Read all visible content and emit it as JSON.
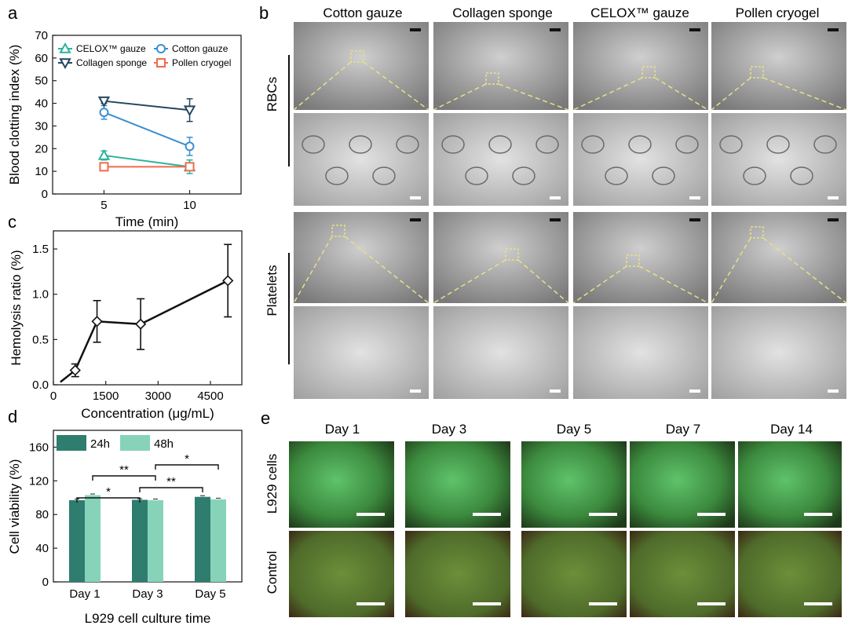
{
  "panels": {
    "a": "a",
    "b": "b",
    "c": "c",
    "d": "d",
    "e": "e"
  },
  "colors": {
    "celox": "#2bb39a",
    "cotton": "#3a8fce",
    "collagen": "#24465e",
    "pollen": "#f06b4f",
    "d_24h": "#2e7d6f",
    "d_48h": "#86d3b9",
    "guide": "#e8df8a"
  },
  "chart_data": [
    {
      "id": "a",
      "type": "line",
      "xlabel": "Time (min)",
      "ylabel": "Blood clotting index (%)",
      "x": [
        5,
        10
      ],
      "xlim": [
        2,
        13
      ],
      "ylim": [
        0,
        70
      ],
      "xticks": [
        "5",
        "10"
      ],
      "yticks": [
        "0",
        "10",
        "20",
        "30",
        "40",
        "50",
        "60",
        "70"
      ],
      "legend": {
        "position": "top",
        "entries": [
          "CELOX™ gauze",
          "Cotton gauze",
          "Collagen sponge",
          "Pollen cryogel"
        ]
      },
      "series": [
        {
          "name": "CELOX™ gauze",
          "marker": "triangle-up",
          "values": [
            17,
            12
          ],
          "err": [
            2,
            3
          ]
        },
        {
          "name": "Cotton gauze",
          "marker": "circle",
          "values": [
            36,
            21
          ],
          "err": [
            3,
            4
          ]
        },
        {
          "name": "Collagen sponge",
          "marker": "triangle-down",
          "values": [
            41,
            37
          ],
          "err": [
            1,
            5
          ]
        },
        {
          "name": "Pollen cryogel",
          "marker": "square",
          "values": [
            12,
            12
          ],
          "err": [
            1,
            1
          ]
        }
      ]
    },
    {
      "id": "c",
      "type": "line",
      "xlabel": "Concentration (μg/mL)",
      "ylabel": "Hemolysis ratio (%)",
      "xlim": [
        0,
        5400
      ],
      "ylim": [
        0,
        1.7
      ],
      "xticks": [
        "0",
        "1500",
        "3000",
        "4500"
      ],
      "yticks": [
        "0.0",
        "0.5",
        "1.0",
        "1.5"
      ],
      "points": [
        {
          "x": 625,
          "y": 0.16,
          "err": 0.07
        },
        {
          "x": 1250,
          "y": 0.7,
          "err": 0.23
        },
        {
          "x": 2500,
          "y": 0.67,
          "err": 0.28
        },
        {
          "x": 5000,
          "y": 1.15,
          "err": 0.4
        }
      ],
      "curve_start": {
        "x": 200,
        "y": 0.03
      }
    },
    {
      "id": "d",
      "type": "bar",
      "xlabel": "L929 cell culture time",
      "ylabel": "Cell viability (%)",
      "categories": [
        "Day 1",
        "Day 3",
        "Day 5"
      ],
      "ylim": [
        0,
        180
      ],
      "yticks": [
        "0",
        "40",
        "80",
        "120",
        "160"
      ],
      "legend": {
        "position": "top",
        "entries": [
          "24h",
          "48h"
        ]
      },
      "series": [
        {
          "name": "24h",
          "values": [
            97,
            97.5,
            101
          ]
        },
        {
          "name": "48h",
          "values": [
            103,
            97,
            98
          ]
        }
      ],
      "significance": [
        "*",
        "**",
        "**",
        "*"
      ]
    }
  ],
  "panel_b": {
    "columns": [
      "Cotton gauze",
      "Collagen sponge",
      "CELOX™ gauze",
      "Pollen cryogel"
    ],
    "row_groups": [
      "RBCs",
      "Platelets"
    ]
  },
  "panel_e": {
    "columns": [
      "Day 1",
      "Day 3",
      "Day 5",
      "Day 7",
      "Day 14"
    ],
    "rows": [
      "L929 cells",
      "Control"
    ]
  }
}
